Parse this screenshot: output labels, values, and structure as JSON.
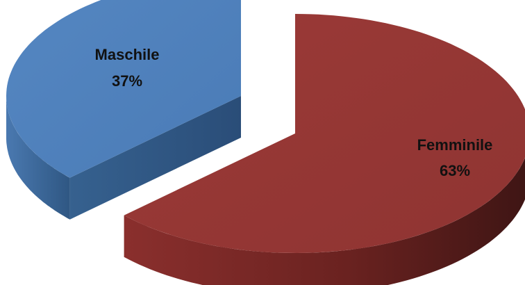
{
  "chart_data": {
    "type": "pie",
    "style": "3d-exploded",
    "title": "",
    "legend": "none",
    "slices": [
      {
        "label": "Femminile",
        "percent_label": "63%",
        "value": 63,
        "color": "#953735"
      },
      {
        "label": "Maschile",
        "percent_label": "37%",
        "value": 37,
        "color": "#4f81bd"
      }
    ]
  }
}
